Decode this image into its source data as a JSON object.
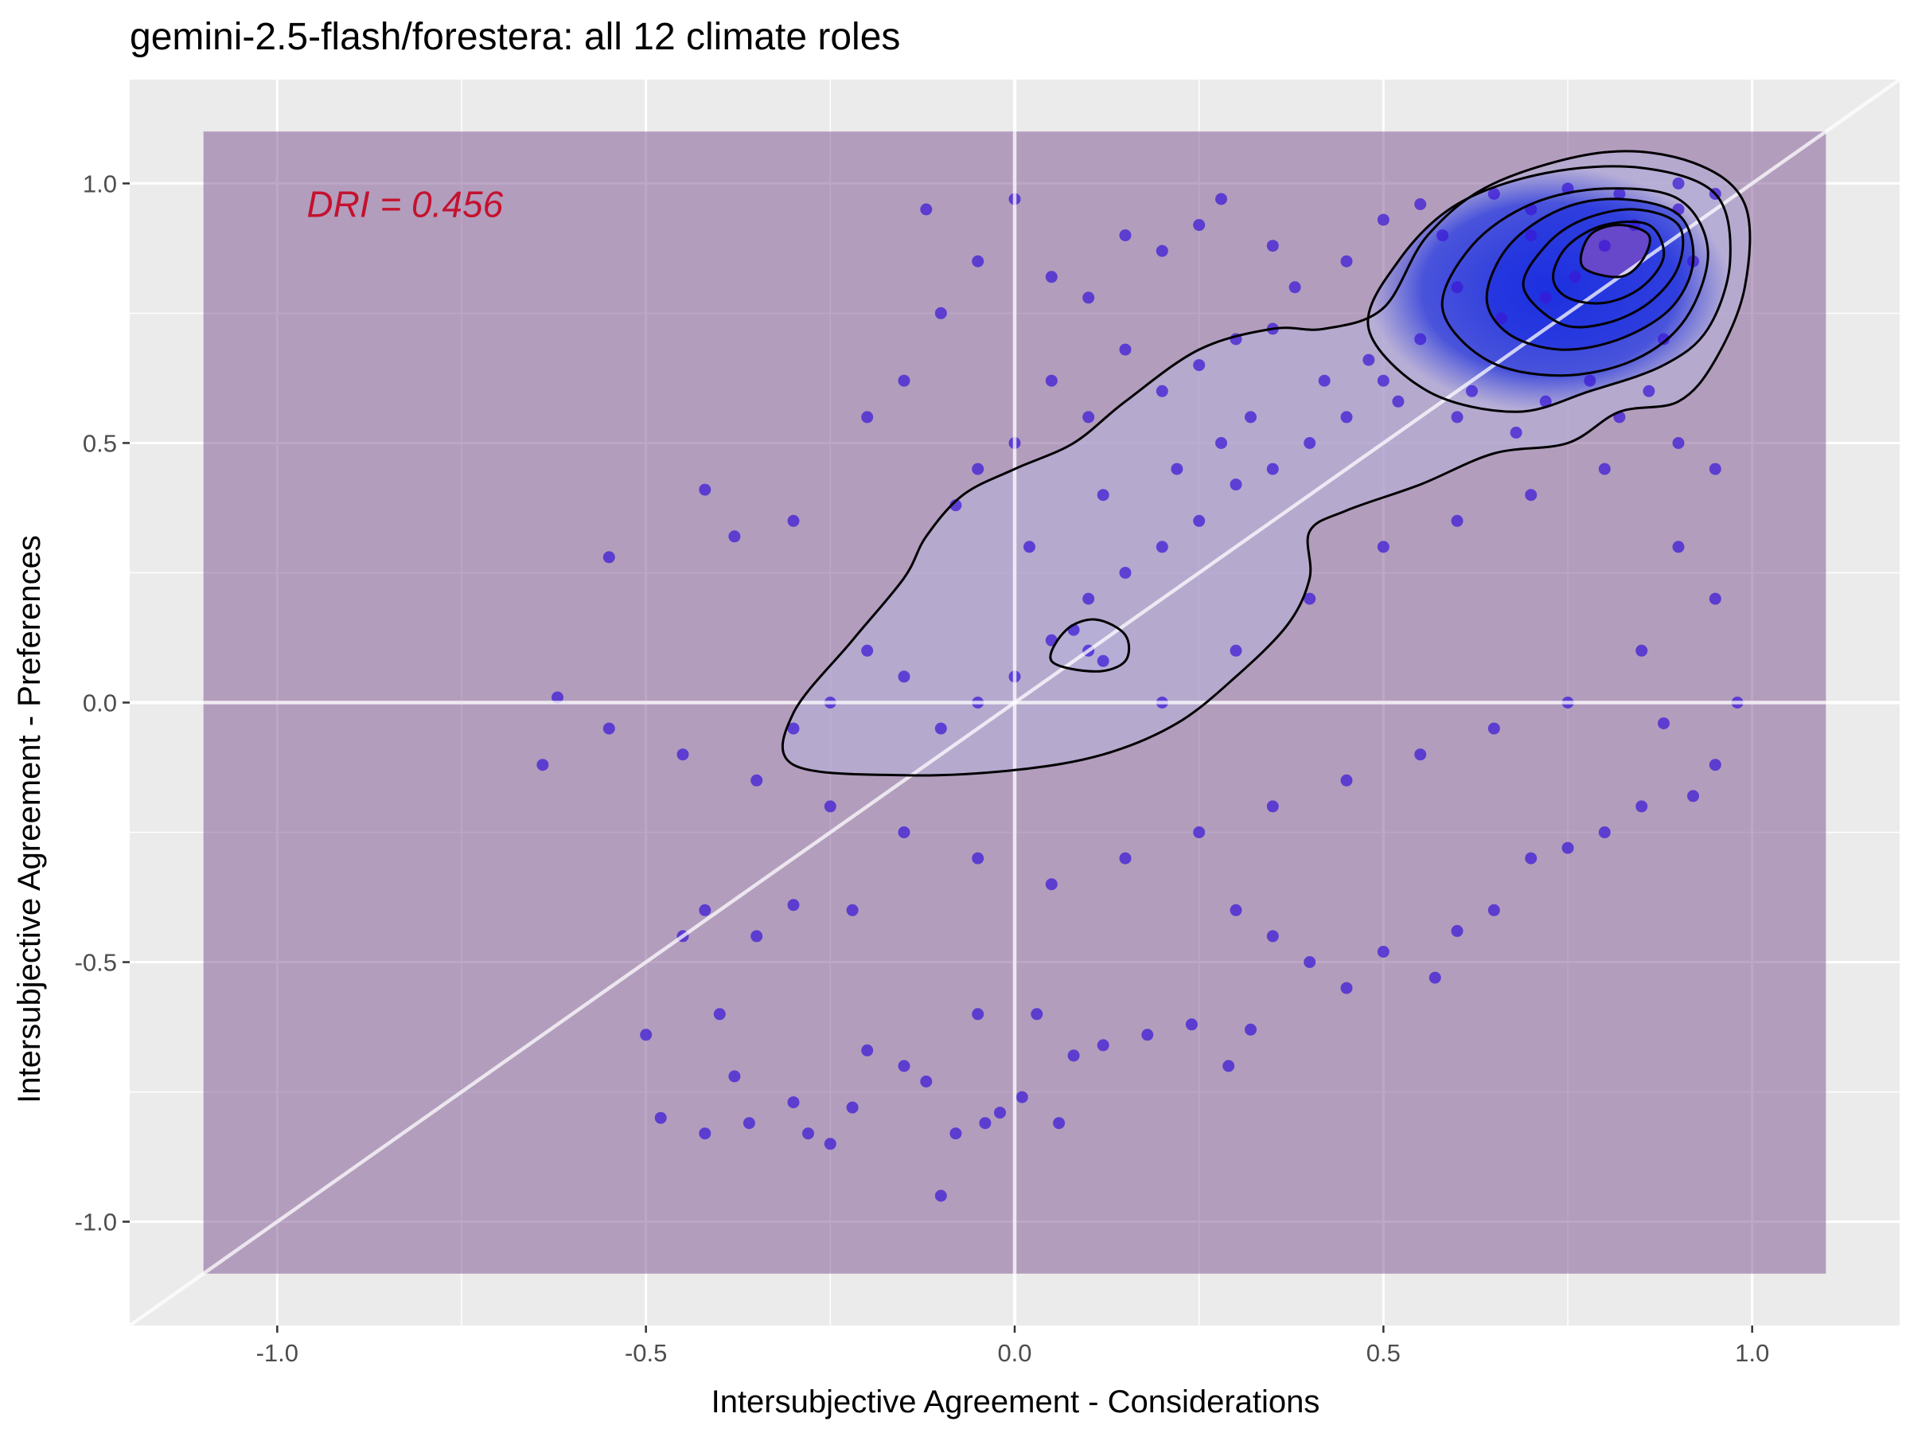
{
  "colors": {
    "panel_background": "#ebebeb",
    "gridline": "#ffffff",
    "region_fill": "#7b4f8f",
    "point_fill": "#3a18d6",
    "contour_line": "#000000",
    "density_low": "#b8b2dc",
    "density_high": "#1a2ee0",
    "density_peak": "#6a48c8",
    "annotation": "#c4122f",
    "tick_text": "#4d4d4d"
  },
  "chart_data": {
    "type": "scatter",
    "title": "gemini-2.5-flash/forestera: all 12 climate roles",
    "xlabel": "Intersubjective Agreement - Considerations",
    "ylabel": "Intersubjective Agreement - Preferences",
    "xlim": [
      -1.2,
      1.2
    ],
    "ylim": [
      -1.2,
      1.2
    ],
    "x_ticks": [
      -1.0,
      -0.5,
      0.0,
      0.5,
      1.0
    ],
    "x_tick_labels": [
      "-1.0",
      "-0.5",
      "0.0",
      "0.5",
      "1.0"
    ],
    "y_ticks": [
      -1.0,
      -0.5,
      0.0,
      0.5,
      1.0
    ],
    "y_tick_labels": [
      "-1.0",
      "-0.5",
      "0.0",
      "0.5",
      "1.0"
    ],
    "grid": true,
    "legend": "none",
    "annotation": {
      "text": "DRI = 0.456",
      "x": -0.96,
      "y": 0.96
    },
    "shaded_region": {
      "x": [
        -1.1,
        1.1
      ],
      "y": [
        -1.1,
        1.1
      ]
    },
    "reference_lines": [
      {
        "kind": "diagonal",
        "slope": 1,
        "intercept": 0
      },
      {
        "kind": "horizontal",
        "y": 0
      },
      {
        "kind": "vertical",
        "x": 0
      }
    ],
    "points": [
      [
        0.8,
        0.88
      ],
      [
        0.76,
        0.82
      ],
      [
        0.84,
        0.92
      ],
      [
        0.72,
        0.78
      ],
      [
        0.9,
        0.95
      ],
      [
        0.66,
        0.74
      ],
      [
        0.88,
        0.7
      ],
      [
        0.6,
        0.8
      ],
      [
        0.92,
        0.85
      ],
      [
        0.7,
        0.95
      ],
      [
        0.55,
        0.7
      ],
      [
        0.95,
        0.98
      ],
      [
        0.78,
        0.62
      ],
      [
        0.62,
        0.6
      ],
      [
        0.86,
        0.6
      ],
      [
        0.5,
        0.62
      ],
      [
        0.45,
        0.55
      ],
      [
        0.4,
        0.5
      ],
      [
        0.35,
        0.45
      ],
      [
        0.3,
        0.42
      ],
      [
        0.25,
        0.35
      ],
      [
        0.2,
        0.3
      ],
      [
        0.15,
        0.25
      ],
      [
        0.1,
        0.2
      ],
      [
        0.05,
        0.12
      ],
      [
        0.0,
        0.05
      ],
      [
        -0.05,
        0.0
      ],
      [
        -0.1,
        -0.05
      ],
      [
        -0.15,
        0.05
      ],
      [
        -0.2,
        0.1
      ],
      [
        -0.25,
        0.0
      ],
      [
        -0.3,
        -0.05
      ],
      [
        0.1,
        0.1
      ],
      [
        0.12,
        0.08
      ],
      [
        0.08,
        0.14
      ],
      [
        0.2,
        0.0
      ],
      [
        0.3,
        0.1
      ],
      [
        0.4,
        0.2
      ],
      [
        0.5,
        0.3
      ],
      [
        0.6,
        0.35
      ],
      [
        0.7,
        0.4
      ],
      [
        0.8,
        0.45
      ],
      [
        0.9,
        0.3
      ],
      [
        0.95,
        0.2
      ],
      [
        0.85,
        0.1
      ],
      [
        0.75,
        0.0
      ],
      [
        0.65,
        -0.05
      ],
      [
        0.55,
        -0.1
      ],
      [
        0.45,
        -0.15
      ],
      [
        0.35,
        -0.2
      ],
      [
        0.25,
        -0.25
      ],
      [
        0.15,
        -0.3
      ],
      [
        0.05,
        -0.35
      ],
      [
        -0.05,
        -0.3
      ],
      [
        -0.15,
        -0.25
      ],
      [
        -0.25,
        -0.2
      ],
      [
        -0.35,
        -0.15
      ],
      [
        -0.45,
        -0.1
      ],
      [
        -0.55,
        -0.05
      ],
      [
        -0.64,
        -0.12
      ],
      [
        -0.62,
        0.01
      ],
      [
        -0.55,
        0.28
      ],
      [
        -0.42,
        0.41
      ],
      [
        -0.38,
        0.32
      ],
      [
        -0.3,
        0.35
      ],
      [
        -0.2,
        0.55
      ],
      [
        -0.15,
        0.62
      ],
      [
        -0.1,
        0.75
      ],
      [
        -0.12,
        0.95
      ],
      [
        -0.05,
        0.85
      ],
      [
        0.0,
        0.97
      ],
      [
        0.05,
        0.82
      ],
      [
        0.1,
        0.78
      ],
      [
        0.15,
        0.9
      ],
      [
        0.2,
        0.87
      ],
      [
        0.25,
        0.92
      ],
      [
        0.28,
        0.97
      ],
      [
        0.35,
        0.88
      ],
      [
        0.38,
        0.8
      ],
      [
        0.45,
        0.85
      ],
      [
        0.5,
        0.93
      ],
      [
        0.55,
        0.96
      ],
      [
        0.58,
        0.9
      ],
      [
        0.65,
        0.98
      ],
      [
        0.7,
        0.9
      ],
      [
        0.75,
        0.99
      ],
      [
        0.82,
        0.98
      ],
      [
        0.9,
        1.0
      ],
      [
        -0.22,
        -0.4
      ],
      [
        -0.3,
        -0.39
      ],
      [
        -0.35,
        -0.45
      ],
      [
        -0.42,
        -0.4
      ],
      [
        -0.45,
        -0.45
      ],
      [
        -0.4,
        -0.6
      ],
      [
        -0.38,
        -0.72
      ],
      [
        -0.42,
        -0.83
      ],
      [
        -0.48,
        -0.8
      ],
      [
        -0.5,
        -0.64
      ],
      [
        -0.36,
        -0.81
      ],
      [
        -0.3,
        -0.77
      ],
      [
        -0.28,
        -0.83
      ],
      [
        -0.25,
        -0.85
      ],
      [
        -0.22,
        -0.78
      ],
      [
        -0.2,
        -0.67
      ],
      [
        -0.15,
        -0.7
      ],
      [
        -0.12,
        -0.73
      ],
      [
        -0.1,
        -0.95
      ],
      [
        -0.08,
        -0.83
      ],
      [
        -0.04,
        -0.81
      ],
      [
        -0.02,
        -0.79
      ],
      [
        0.01,
        -0.76
      ],
      [
        0.06,
        -0.81
      ],
      [
        -0.05,
        -0.6
      ],
      [
        0.03,
        -0.6
      ],
      [
        0.08,
        -0.68
      ],
      [
        0.12,
        -0.66
      ],
      [
        0.18,
        -0.64
      ],
      [
        0.24,
        -0.62
      ],
      [
        0.32,
        -0.63
      ],
      [
        0.29,
        -0.7
      ],
      [
        0.3,
        -0.4
      ],
      [
        0.35,
        -0.45
      ],
      [
        0.4,
        -0.5
      ],
      [
        0.45,
        -0.55
      ],
      [
        0.5,
        -0.48
      ],
      [
        0.57,
        -0.53
      ],
      [
        0.6,
        -0.44
      ],
      [
        0.65,
        -0.4
      ],
      [
        0.7,
        -0.3
      ],
      [
        0.75,
        -0.28
      ],
      [
        0.8,
        -0.25
      ],
      [
        0.85,
        -0.2
      ],
      [
        0.92,
        -0.18
      ],
      [
        0.95,
        -0.12
      ],
      [
        0.88,
        -0.04
      ],
      [
        0.98,
        0.0
      ],
      [
        0.3,
        0.7
      ],
      [
        0.35,
        0.72
      ],
      [
        0.25,
        0.65
      ],
      [
        0.2,
        0.6
      ],
      [
        0.15,
        0.68
      ],
      [
        0.1,
        0.55
      ],
      [
        0.05,
        0.62
      ],
      [
        0.0,
        0.5
      ],
      [
        -0.05,
        0.45
      ],
      [
        -0.08,
        0.38
      ],
      [
        0.02,
        0.3
      ],
      [
        0.12,
        0.4
      ],
      [
        0.22,
        0.45
      ],
      [
        0.28,
        0.5
      ],
      [
        0.32,
        0.55
      ],
      [
        0.42,
        0.62
      ],
      [
        0.48,
        0.66
      ],
      [
        0.52,
        0.58
      ],
      [
        0.6,
        0.55
      ],
      [
        0.68,
        0.52
      ],
      [
        0.72,
        0.58
      ],
      [
        0.82,
        0.55
      ],
      [
        0.9,
        0.5
      ],
      [
        0.95,
        0.45
      ]
    ],
    "density_contours": [
      {
        "level": 1,
        "points": [
          [
            -0.3,
            -0.12
          ],
          [
            -0.3,
            -0.02
          ],
          [
            -0.22,
            0.12
          ],
          [
            -0.15,
            0.24
          ],
          [
            -0.12,
            0.32
          ],
          [
            -0.07,
            0.4
          ],
          [
            0.0,
            0.45
          ],
          [
            0.08,
            0.5
          ],
          [
            0.15,
            0.58
          ],
          [
            0.25,
            0.68
          ],
          [
            0.35,
            0.72
          ],
          [
            0.42,
            0.72
          ],
          [
            0.5,
            0.76
          ],
          [
            0.56,
            0.9
          ],
          [
            0.65,
            1.0
          ],
          [
            0.8,
            1.06
          ],
          [
            0.92,
            1.04
          ],
          [
            0.99,
            0.96
          ],
          [
            0.99,
            0.8
          ],
          [
            0.95,
            0.66
          ],
          [
            0.9,
            0.58
          ],
          [
            0.82,
            0.56
          ],
          [
            0.75,
            0.5
          ],
          [
            0.65,
            0.48
          ],
          [
            0.55,
            0.42
          ],
          [
            0.45,
            0.37
          ],
          [
            0.4,
            0.33
          ],
          [
            0.4,
            0.24
          ],
          [
            0.37,
            0.15
          ],
          [
            0.3,
            0.05
          ],
          [
            0.22,
            -0.04
          ],
          [
            0.12,
            -0.1
          ],
          [
            0.0,
            -0.13
          ],
          [
            -0.15,
            -0.14
          ]
        ]
      },
      {
        "level": 2,
        "points": [
          [
            0.48,
            0.72
          ],
          [
            0.52,
            0.85
          ],
          [
            0.6,
            0.96
          ],
          [
            0.72,
            1.02
          ],
          [
            0.85,
            1.03
          ],
          [
            0.95,
            0.98
          ],
          [
            0.97,
            0.85
          ],
          [
            0.94,
            0.72
          ],
          [
            0.88,
            0.65
          ],
          [
            0.78,
            0.6
          ],
          [
            0.68,
            0.56
          ],
          [
            0.56,
            0.6
          ]
        ]
      },
      {
        "level": 3,
        "points": [
          [
            0.58,
            0.76
          ],
          [
            0.62,
            0.88
          ],
          [
            0.7,
            0.96
          ],
          [
            0.8,
            0.99
          ],
          [
            0.9,
            0.97
          ],
          [
            0.94,
            0.87
          ],
          [
            0.91,
            0.74
          ],
          [
            0.84,
            0.66
          ],
          [
            0.74,
            0.63
          ],
          [
            0.64,
            0.66
          ]
        ]
      },
      {
        "level": 4,
        "points": [
          [
            0.64,
            0.78
          ],
          [
            0.67,
            0.88
          ],
          [
            0.74,
            0.95
          ],
          [
            0.82,
            0.97
          ],
          [
            0.9,
            0.94
          ],
          [
            0.92,
            0.85
          ],
          [
            0.89,
            0.76
          ],
          [
            0.82,
            0.7
          ],
          [
            0.74,
            0.68
          ],
          [
            0.67,
            0.71
          ]
        ]
      },
      {
        "level": 5,
        "points": [
          [
            0.69,
            0.8
          ],
          [
            0.72,
            0.88
          ],
          [
            0.77,
            0.93
          ],
          [
            0.84,
            0.95
          ],
          [
            0.9,
            0.92
          ],
          [
            0.9,
            0.84
          ],
          [
            0.86,
            0.77
          ],
          [
            0.8,
            0.73
          ],
          [
            0.74,
            0.73
          ]
        ]
      },
      {
        "level": 6,
        "points": [
          [
            0.73,
            0.82
          ],
          [
            0.75,
            0.88
          ],
          [
            0.8,
            0.92
          ],
          [
            0.86,
            0.92
          ],
          [
            0.88,
            0.86
          ],
          [
            0.85,
            0.8
          ],
          [
            0.8,
            0.77
          ],
          [
            0.75,
            0.78
          ]
        ]
      },
      {
        "level": 7,
        "points": [
          [
            0.77,
            0.84
          ],
          [
            0.78,
            0.9
          ],
          [
            0.82,
            0.92
          ],
          [
            0.86,
            0.9
          ],
          [
            0.85,
            0.85
          ],
          [
            0.82,
            0.82
          ]
        ]
      },
      {
        "level": 2,
        "points": [
          [
            0.05,
            0.08
          ],
          [
            0.07,
            0.14
          ],
          [
            0.11,
            0.16
          ],
          [
            0.15,
            0.13
          ],
          [
            0.15,
            0.08
          ],
          [
            0.11,
            0.06
          ]
        ]
      }
    ]
  }
}
